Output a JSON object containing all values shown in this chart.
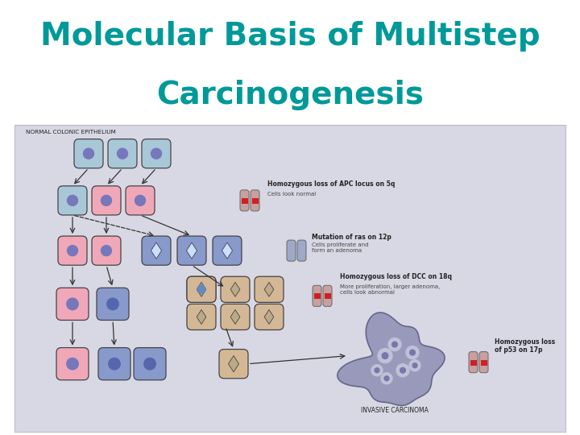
{
  "title_line1": "Molecular Basis of Multistep",
  "title_line2": "Carcinogenesis",
  "title_color": "#009999",
  "title_fontsize": 28,
  "title_fontweight": "bold",
  "background_color": "#ffffff",
  "fig_width": 7.2,
  "fig_height": 5.4,
  "dpi": 100,
  "label_normal": "NORMAL COLONIC EPITHELIUM",
  "label_invasive": "INVASIVE CARCINOMA",
  "label_apc": "Homozygous loss of APC locus on 5q",
  "label_apc_sub": "Cells look normal",
  "label_ras": "Mutation of ras on 12p",
  "label_ras_sub": "Cells proliferate and\nform an adenoma",
  "label_dcc": "Homozygous loss of DCC on 18q",
  "label_dcc_sub": "More proliferation, larger adenoma,\ncells look abnormal",
  "label_p53": "Homozygous loss\nof p53 on 17p",
  "c_blue": "#a8c8d8",
  "c_pink": "#f0a8b8",
  "c_blue2": "#8899cc",
  "c_tan": "#d4b896",
  "nuc": "#7777bb",
  "nuc_dark": "#5566aa",
  "nuc_blue": "#6688bb",
  "diagram_bg": "#d8d8e4",
  "diagram_border": "#bbbbcc",
  "chrom_pink": "#c8a0a0",
  "chrom_blue": "#a0a8c8",
  "chrom_stripe": "#cc2222",
  "blob_fill": "#9999bb",
  "blob_cell": "#c0c0d8",
  "blob_nuc": "#7777aa"
}
